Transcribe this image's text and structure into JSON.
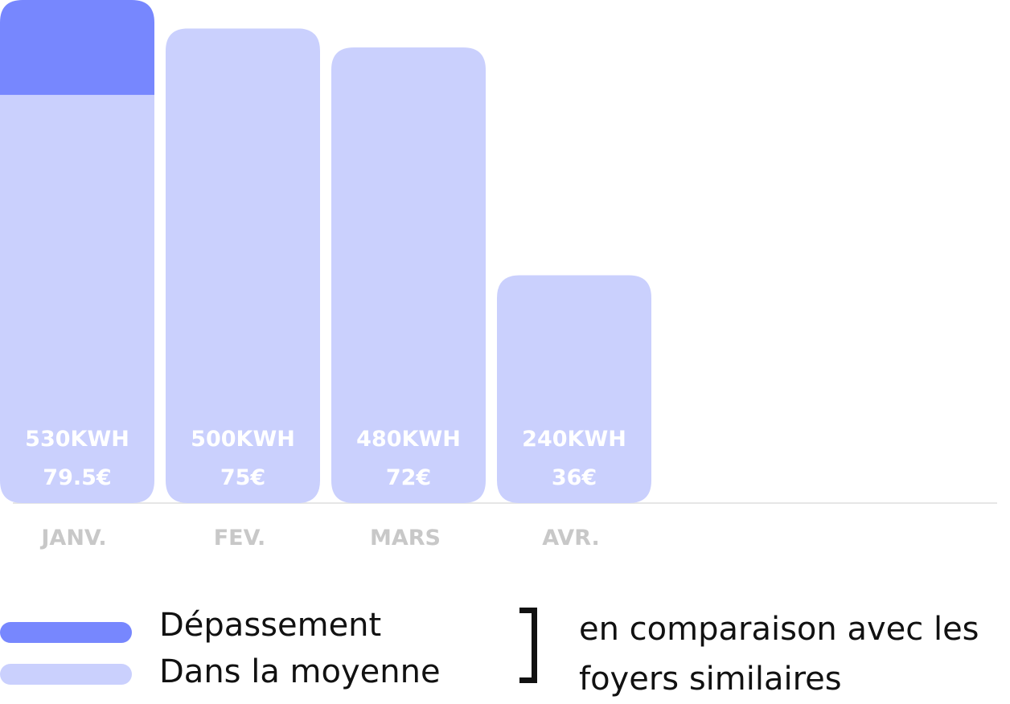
{
  "chart_data": {
    "type": "bar",
    "stacked": true,
    "categories": [
      "JANV.",
      "FEV.",
      "MARS",
      "AVR."
    ],
    "series": [
      {
        "name": "Dans la moyenne",
        "color": "#cad0fd",
        "values": [
          430,
          500,
          480,
          240
        ]
      },
      {
        "name": "Dépassement",
        "color": "#7787fe",
        "values": [
          100,
          0,
          0,
          0
        ]
      }
    ],
    "totals": [
      530,
      500,
      480,
      240
    ],
    "value_labels": [
      "530KWH",
      "500KWH",
      "480KWH",
      "240KWH"
    ],
    "cost_labels": [
      "79.5€",
      "75€",
      "72€",
      "36€"
    ],
    "ylim": [
      0,
      530
    ],
    "grid": false,
    "legend_position": "bottom-left"
  },
  "legend": {
    "items": [
      {
        "label": "Dépassement",
        "color": "#7787fe"
      },
      {
        "label": "Dans la moyenne",
        "color": "#cad0fd"
      }
    ],
    "note": "en comparaison avec les foyers similaires"
  }
}
